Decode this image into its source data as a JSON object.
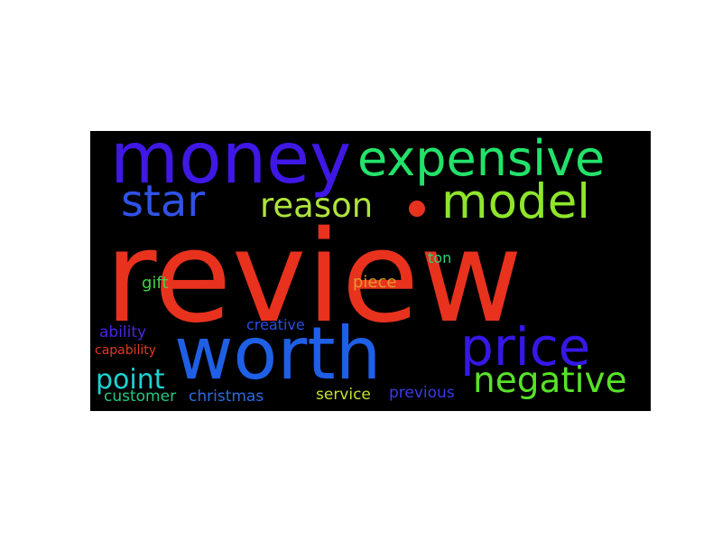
{
  "wordcloud": {
    "background": "#000000",
    "words": {
      "review": {
        "text": "review",
        "color": "#e8321e"
      },
      "money": {
        "text": "money",
        "color": "#3f18e6"
      },
      "expensive": {
        "text": "expensive",
        "color": "#22e26a"
      },
      "star": {
        "text": "star",
        "color": "#2f52e8"
      },
      "reason": {
        "text": "reason",
        "color": "#aee33b"
      },
      "model": {
        "text": "model",
        "color": "#8ee62a"
      },
      "worth": {
        "text": "worth",
        "color": "#1e5fe6"
      },
      "price": {
        "text": "price",
        "color": "#3518e8"
      },
      "negative": {
        "text": "negative",
        "color": "#58e228"
      },
      "point": {
        "text": "point",
        "color": "#1ed2d2"
      },
      "gift": {
        "text": "gift",
        "color": "#44d24a"
      },
      "ton": {
        "text": "ton",
        "color": "#22d87a"
      },
      "piece": {
        "text": "piece",
        "color": "#e29a28"
      },
      "creative": {
        "text": "creative",
        "color": "#2a4ee6"
      },
      "ability": {
        "text": "ability",
        "color": "#4a26e0"
      },
      "capability": {
        "text": "capability",
        "color": "#e03a1c"
      },
      "customer": {
        "text": "customer",
        "color": "#24c882"
      },
      "christmas": {
        "text": "christmas",
        "color": "#2a6ae0"
      },
      "service": {
        "text": "service",
        "color": "#c8e02a"
      },
      "previous": {
        "text": "previous",
        "color": "#3a3ae8"
      }
    },
    "dot_color": "#e8321e"
  }
}
